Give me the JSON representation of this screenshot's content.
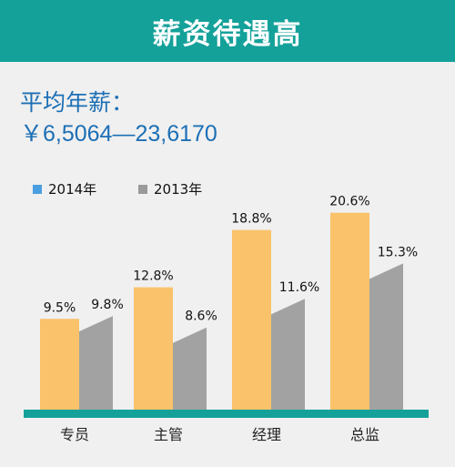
{
  "header": {
    "title": "薪资待遇高"
  },
  "salary": {
    "label": "平均年薪：",
    "range": "￥6,5064—23,6170"
  },
  "colors": {
    "header_bg": "#14a19a",
    "series_2014": "#f9c26b",
    "series_2013": "#a2a2a2",
    "legend_2014": "#4a9fe0",
    "legend_2013": "#9a9a9a",
    "baseline": "#14a19a",
    "text_blue": "#1c6fb5"
  },
  "chart_data": {
    "type": "bar",
    "categories": [
      "专员",
      "主管",
      "经理",
      "总监"
    ],
    "series": [
      {
        "name": "2014年",
        "values": [
          9.5,
          12.8,
          18.8,
          20.6
        ],
        "labels": [
          "9.5%",
          "12.8%",
          "18.8%",
          "20.6%"
        ]
      },
      {
        "name": "2013年",
        "values": [
          9.8,
          8.6,
          11.6,
          15.3
        ],
        "labels": [
          "9.8%",
          "8.6%",
          "11.6%",
          "15.3%"
        ]
      }
    ],
    "legend_position": "top-left",
    "grid": false
  }
}
